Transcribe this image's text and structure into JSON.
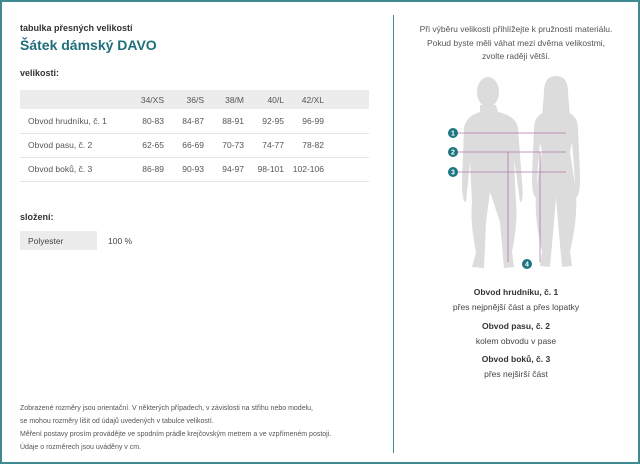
{
  "header": {
    "subtitle": "tabulka přesných velikostí",
    "title": "Šátek dámský DAVO"
  },
  "sizes": {
    "heading": "velikosti:",
    "columns": [
      "",
      "34/XS",
      "36/S",
      "38/M",
      "40/L",
      "42/XL"
    ],
    "rows": [
      [
        "Obvod hrudníku, č. 1",
        "80-83",
        "84-87",
        "88-91",
        "92-95",
        "96-99"
      ],
      [
        "Obvod pasu, č. 2",
        "62-65",
        "66-69",
        "70-73",
        "74-77",
        "78-82"
      ],
      [
        "Obvod boků, č. 3",
        "86-89",
        "90-93",
        "94-97",
        "98-101",
        "102-106"
      ]
    ]
  },
  "composition": {
    "heading": "složení:",
    "material": "Polyester",
    "percent": "100 %"
  },
  "footer": [
    "Zobrazené rozměry jsou orientační. V některých případech, v závislosti na střihu nebo modelu,",
    "se mohou rozměry lišit od údajů uvedených v tabulce velikostí.",
    "Měření postavy prosím provádějte ve spodním prádle krejčovským metrem a ve vzpřímeném postoji.",
    "Údaje o rozměrech jsou uváděny v cm."
  ],
  "note": [
    "Při výběru velikosti přihlížejte k pružnosti materiálu.",
    "Pokud byste měli váhat mezi dvěma velikostmi,",
    "zvolte raději větší."
  ],
  "markers": [
    "1",
    "2",
    "3",
    "4"
  ],
  "legend": [
    {
      "title": "Obvod hrudníku, č. 1",
      "desc": "přes nejpnější část a přes lopatky"
    },
    {
      "title": "Obvod pasu, č. 2",
      "desc": "kolem obvodu v pase"
    },
    {
      "title": "Obvod boků, č. 3",
      "desc": "přes nejširší část"
    }
  ],
  "colors": {
    "accent": "#1f6e7a",
    "border": "#3f8a90",
    "marker": "#1e7582",
    "line": "#a0609a"
  }
}
